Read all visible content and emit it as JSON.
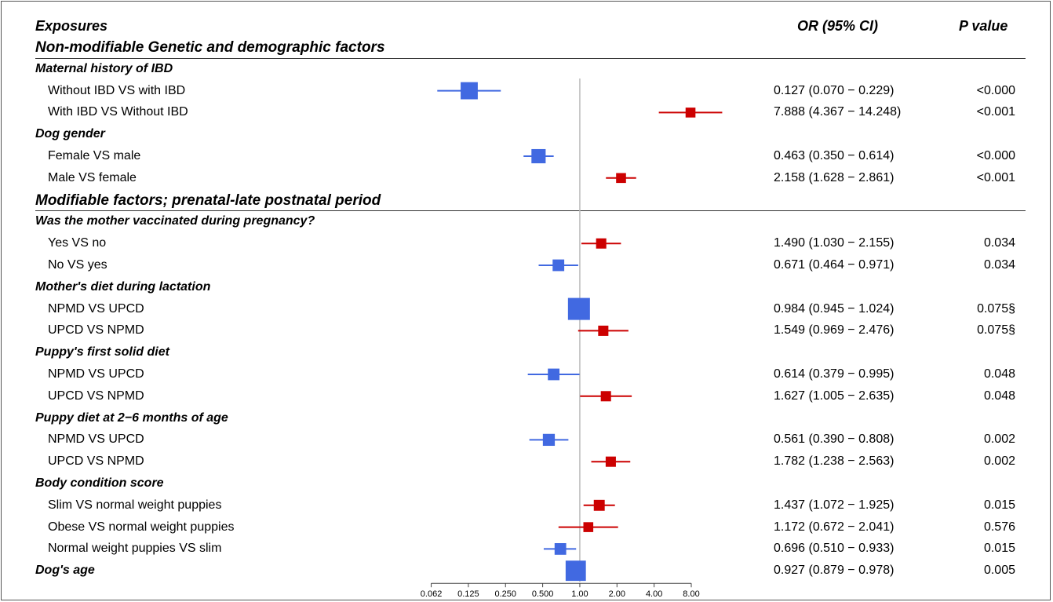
{
  "colors": {
    "protective": "#4169E1",
    "risk": "#CC0000",
    "reference_line": "#bbbbbb",
    "axis": "#444444"
  },
  "headers": {
    "exposures": "Exposures",
    "or_ci": "OR (95% CI)",
    "p_value": "P value"
  },
  "sections": [
    {
      "title": "Non-modifiable Genetic and demographic factors"
    },
    {
      "title": "Modifiable factors; prenatal-late postnatal period"
    }
  ],
  "chart_data": {
    "type": "forest",
    "x_scale": "log2",
    "xlim": [
      0.062,
      8.0
    ],
    "reference_value": 1.0,
    "tick_labels": [
      "0.062",
      "0.125",
      "0.250",
      "0.500",
      "1.00",
      "2.00",
      "4.00",
      "8.00"
    ],
    "tick_values": [
      0.0625,
      0.125,
      0.25,
      0.5,
      1,
      2,
      4,
      8
    ],
    "rows": [
      {
        "kind": "section",
        "label": "Non-modifiable Genetic and demographic factors"
      },
      {
        "kind": "group",
        "label": "Maternal history of IBD"
      },
      {
        "kind": "item",
        "label": "Without IBD VS with IBD",
        "or": 0.127,
        "lo": 0.07,
        "hi": 0.229,
        "ci_text": "0.127 (0.070 − 0.229)",
        "p": "<0.000",
        "weight": 0.72,
        "color": "protective"
      },
      {
        "kind": "item",
        "label": "With IBD VS Without IBD",
        "or": 7.888,
        "lo": 4.367,
        "hi": 14.248,
        "ci_text": "7.888 (4.367 − 14.248)",
        "p": "<0.001",
        "weight": 0.3,
        "color": "risk"
      },
      {
        "kind": "group",
        "label": "Dog gender"
      },
      {
        "kind": "item",
        "label": "Female VS male",
        "or": 0.463,
        "lo": 0.35,
        "hi": 0.614,
        "ci_text": "0.463 (0.350 − 0.614)",
        "p": "<0.000",
        "weight": 0.55,
        "color": "protective"
      },
      {
        "kind": "item",
        "label": "Male VS female",
        "or": 2.158,
        "lo": 1.628,
        "hi": 2.861,
        "ci_text": "2.158 (1.628 − 2.861)",
        "p": "<0.001",
        "weight": 0.3,
        "color": "risk"
      },
      {
        "kind": "section",
        "label": "Modifiable factors; prenatal-late postnatal period"
      },
      {
        "kind": "group",
        "label": "Was the mother vaccinated during pregnancy?"
      },
      {
        "kind": "item",
        "label": "Yes VS no",
        "or": 1.49,
        "lo": 1.03,
        "hi": 2.155,
        "ci_text": "1.490 (1.030 − 2.155)",
        "p": "0.034",
        "weight": 0.32,
        "color": "risk"
      },
      {
        "kind": "item",
        "label": "No VS yes",
        "or": 0.671,
        "lo": 0.464,
        "hi": 0.971,
        "ci_text": "0.671 (0.464 − 0.971)",
        "p": "0.034",
        "weight": 0.4,
        "color": "protective"
      },
      {
        "kind": "group",
        "label": "Mother's diet during lactation"
      },
      {
        "kind": "item",
        "label": "NPMD VS UPCD",
        "or": 0.984,
        "lo": 0.945,
        "hi": 1.024,
        "ci_text": "0.984 (0.945 − 1.024)",
        "p": "0.075§",
        "weight": 1.0,
        "color": "protective"
      },
      {
        "kind": "item",
        "label": "UPCD VS NPMD",
        "or": 1.549,
        "lo": 0.969,
        "hi": 2.476,
        "ci_text": "1.549 (0.969 − 2.476)",
        "p": "0.075§",
        "weight": 0.32,
        "color": "risk"
      },
      {
        "kind": "group",
        "label": "Puppy's first solid diet"
      },
      {
        "kind": "item",
        "label": "NPMD VS UPCD",
        "or": 0.614,
        "lo": 0.379,
        "hi": 0.995,
        "ci_text": "0.614 (0.379 − 0.995)",
        "p": "0.048",
        "weight": 0.4,
        "color": "protective"
      },
      {
        "kind": "item",
        "label": "UPCD VS NPMD",
        "or": 1.627,
        "lo": 1.005,
        "hi": 2.635,
        "ci_text": "1.627 (1.005 − 2.635)",
        "p": "0.048",
        "weight": 0.32,
        "color": "risk"
      },
      {
        "kind": "group",
        "label": "Puppy diet at 2−6 months of age"
      },
      {
        "kind": "item",
        "label": "NPMD VS UPCD",
        "or": 0.561,
        "lo": 0.39,
        "hi": 0.808,
        "ci_text": "0.561 (0.390 − 0.808)",
        "p": "0.002",
        "weight": 0.42,
        "color": "protective"
      },
      {
        "kind": "item",
        "label": "UPCD VS NPMD",
        "or": 1.782,
        "lo": 1.238,
        "hi": 2.563,
        "ci_text": "1.782 (1.238 − 2.563)",
        "p": "0.002",
        "weight": 0.32,
        "color": "risk"
      },
      {
        "kind": "group",
        "label": "Body condition score"
      },
      {
        "kind": "item",
        "label": "Slim VS normal weight puppies",
        "or": 1.437,
        "lo": 1.072,
        "hi": 1.925,
        "ci_text": "1.437 (1.072 − 1.925)",
        "p": "0.015",
        "weight": 0.36,
        "color": "risk"
      },
      {
        "kind": "item",
        "label": "Obese VS normal weight puppies",
        "or": 1.172,
        "lo": 0.672,
        "hi": 2.041,
        "ci_text": "1.172 (0.672 − 2.041)",
        "p": "0.576",
        "weight": 0.3,
        "color": "risk"
      },
      {
        "kind": "item",
        "label": "Normal weight puppies VS slim",
        "or": 0.696,
        "lo": 0.51,
        "hi": 0.933,
        "ci_text": "0.696 (0.510 − 0.933)",
        "p": "0.015",
        "weight": 0.4,
        "color": "protective"
      },
      {
        "kind": "group_item",
        "label": "Dog's age",
        "or": 0.927,
        "lo": 0.879,
        "hi": 0.978,
        "ci_text": "0.927 (0.879 − 0.978)",
        "p": "0.005",
        "weight": 0.9,
        "color": "protective"
      }
    ]
  }
}
